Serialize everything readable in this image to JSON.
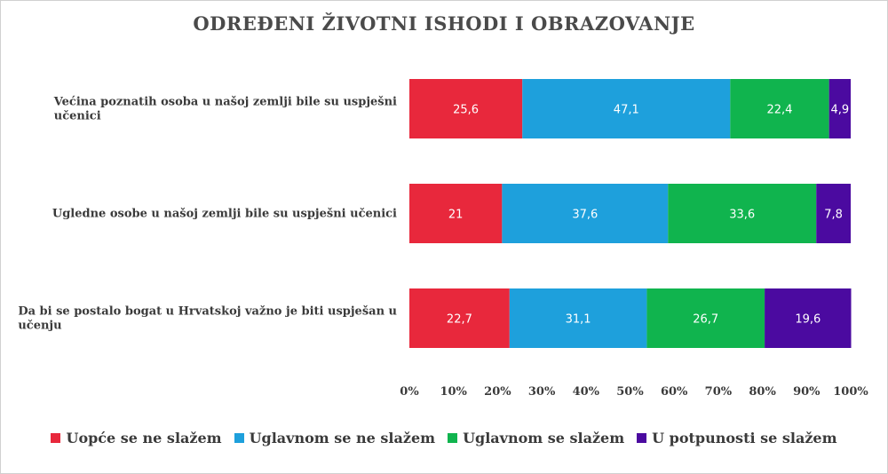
{
  "chart_data": {
    "type": "bar",
    "orientation": "horizontal",
    "stacked": true,
    "title": "ODREĐENI ŽIVOTNI ISHODI I OBRAZOVANJE",
    "categories": [
      "Većina poznatih osoba u našoj zemlji bile su uspješni učenici",
      "Ugledne osobe u našoj zemlji bile su uspješni učenici",
      "Da bi se postalo bogat u Hrvatskoj važno je biti uspješan u učenju"
    ],
    "series": [
      {
        "name": "Uopće se ne slažem",
        "color": "#e8283c",
        "values": [
          25.6,
          21,
          22.7
        ],
        "labels": [
          "25,6",
          "21",
          "22,7"
        ]
      },
      {
        "name": "Uglavnom se ne slažem",
        "color": "#1ea0dc",
        "values": [
          47.1,
          37.6,
          31.1
        ],
        "labels": [
          "47,1",
          "37,6",
          "31,1"
        ]
      },
      {
        "name": "Uglavnom se slažem",
        "color": "#10b44e",
        "values": [
          22.4,
          33.6,
          26.7
        ],
        "labels": [
          "22,4",
          "33,6",
          "26,7"
        ]
      },
      {
        "name": "U potpunosti se slažem",
        "color": "#4b0aa0",
        "values": [
          4.9,
          7.8,
          19.6
        ],
        "labels": [
          "4,9",
          "7,8",
          "19,6"
        ]
      }
    ],
    "xlim": [
      0,
      100
    ],
    "xticks": [
      "0%",
      "10%",
      "20%",
      "30%",
      "40%",
      "50%",
      "60%",
      "70%",
      "80%",
      "90%",
      "100%"
    ],
    "legend_position": "bottom",
    "grid": false
  }
}
